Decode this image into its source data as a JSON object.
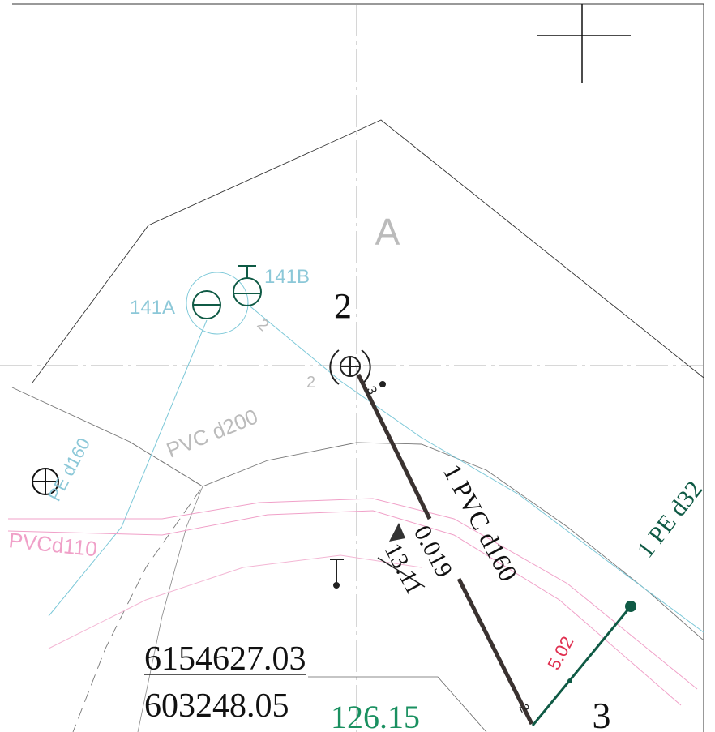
{
  "drawing": {
    "zone_label": "A",
    "node_2": "2",
    "node_3": "3",
    "valve_141a": "141A",
    "valve_141b": "141B",
    "pipe_pvc_d200": "PVC d200",
    "pipe_pe_d160": "PE d160",
    "pipe_pvc_d110": "PVCd110",
    "main_pipe": "1 PVC d160",
    "slope": "0.019",
    "length": "13.11",
    "branch_pipe": "1 PE d32",
    "branch_length": "5.02",
    "coord_north": "6154627.03",
    "coord_east": "603248.05",
    "elevation": "126.15",
    "seg_mark_a": "2",
    "seg_mark_b": "2",
    "seg_mark_c": "3",
    "seg_mark_d": "2"
  }
}
